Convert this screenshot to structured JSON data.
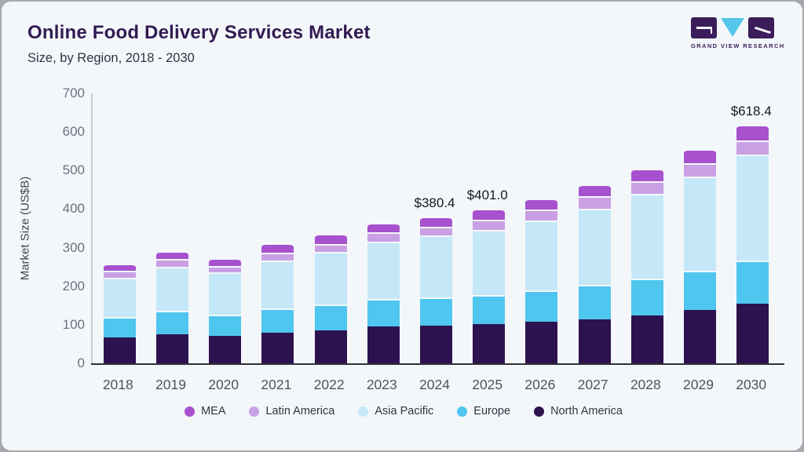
{
  "header": {
    "title": "Online Food Delivery Services Market",
    "subtitle": "Size, by Region, 2018 - 2030"
  },
  "logo": {
    "brand": "GRAND VIEW RESEARCH",
    "block_color": "#3a1d5a",
    "triangle_color": "#56c6ea"
  },
  "chart_data": {
    "type": "bar",
    "stacked": true,
    "title": "Online Food Delivery Services Market Size, by Region, 2018 - 2030",
    "xlabel": "",
    "ylabel": "Market Size (US$B)",
    "ylim": [
      0,
      700
    ],
    "yticks": [
      0,
      100,
      200,
      300,
      400,
      500,
      600,
      700
    ],
    "grid": false,
    "legend_position": "bottom",
    "categories": [
      "2018",
      "2019",
      "2020",
      "2021",
      "2022",
      "2023",
      "2024",
      "2025",
      "2026",
      "2027",
      "2028",
      "2029",
      "2030"
    ],
    "series": [
      {
        "name": "North America",
        "color": "#2d1250",
        "values": [
          67.9,
          75.3,
          72.0,
          79.3,
          84.9,
          95.1,
          97.5,
          101.0,
          108.0,
          114.1,
          125.1,
          138.7,
          154.7
        ]
      },
      {
        "name": "Europe",
        "color": "#4fc6ef",
        "values": [
          52.3,
          60.1,
          54.4,
          62.8,
          68.1,
          70.9,
          73.4,
          77.0,
          80.5,
          89.4,
          94.1,
          101.0,
          112.7
        ]
      },
      {
        "name": "Asia Pacific",
        "color": "#c4e8f8",
        "values": [
          102.3,
          115.7,
          109.2,
          124.8,
          136.4,
          150.0,
          159.9,
          168.6,
          182.0,
          198.3,
          219.4,
          243.9,
          273.1
        ]
      },
      {
        "name": "Latin America",
        "color": "#c9a0e4",
        "values": [
          17.2,
          19.2,
          17.6,
          20.4,
          19.8,
          24.5,
          23.6,
          25.3,
          28.7,
          32.1,
          34.2,
          35.4,
          37.7
        ]
      },
      {
        "name": "MEA",
        "color": "#a751ce",
        "values": [
          19.0,
          21.7,
          20.4,
          24.6,
          25.8,
          23.9,
          26.0,
          29.1,
          28.6,
          30.7,
          32.7,
          37.6,
          40.2
        ]
      }
    ],
    "totals": [
      258.7,
      292.0,
      273.6,
      311.9,
      335.0,
      364.4,
      380.4,
      401.0,
      427.8,
      464.6,
      505.5,
      556.6,
      618.4
    ],
    "annotations": [
      {
        "category": "2024",
        "text": "$380.4"
      },
      {
        "category": "2025",
        "text": "$401.0"
      },
      {
        "category": "2030",
        "text": "$618.4"
      }
    ],
    "legend": [
      {
        "label": "MEA",
        "color": "#a751ce"
      },
      {
        "label": "Latin America",
        "color": "#c9a0e4"
      },
      {
        "label": "Asia Pacific",
        "color": "#c4e8f8"
      },
      {
        "label": "Europe",
        "color": "#4fc6ef"
      },
      {
        "label": "North America",
        "color": "#2d1250"
      }
    ]
  }
}
